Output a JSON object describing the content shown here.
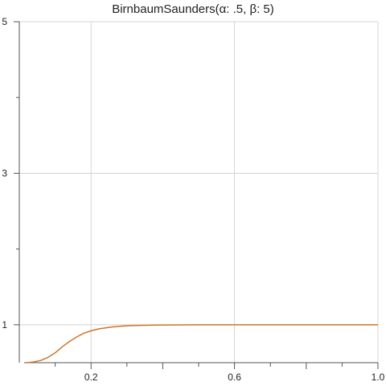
{
  "chart_data": {
    "type": "line",
    "title": "BirnbaumSaunders(α: .5, β: 5)",
    "xlabel": "",
    "ylabel": "",
    "xlim": [
      0,
      1.0
    ],
    "ylim": [
      0.5,
      5
    ],
    "x_tick_labels": [
      "0.2",
      "0.6",
      "1.0"
    ],
    "y_tick_labels": [
      "1",
      "3",
      "5"
    ],
    "x_grid": [
      0.2,
      0.6,
      1.0
    ],
    "y_grid": [
      1,
      3,
      5
    ],
    "grid": true,
    "series": [
      {
        "color": "#d07428",
        "x": [
          0.02,
          0.04,
          0.06,
          0.08,
          0.1,
          0.12,
          0.14,
          0.16,
          0.18,
          0.2,
          0.22,
          0.24,
          0.26,
          0.28,
          0.3,
          0.32,
          0.35,
          0.38,
          0.42,
          0.46,
          0.5,
          0.55,
          0.6,
          0.65,
          0.7,
          0.8,
          0.9,
          1.0
        ],
        "y": [
          0.5,
          0.51,
          0.53,
          0.57,
          0.63,
          0.71,
          0.78,
          0.84,
          0.89,
          0.92,
          0.945,
          0.96,
          0.972,
          0.981,
          0.987,
          0.991,
          0.994,
          0.996,
          0.998,
          0.999,
          0.9995,
          1.0,
          1.0,
          1.0,
          1.0,
          1.0,
          1.0,
          1.0
        ]
      }
    ]
  }
}
